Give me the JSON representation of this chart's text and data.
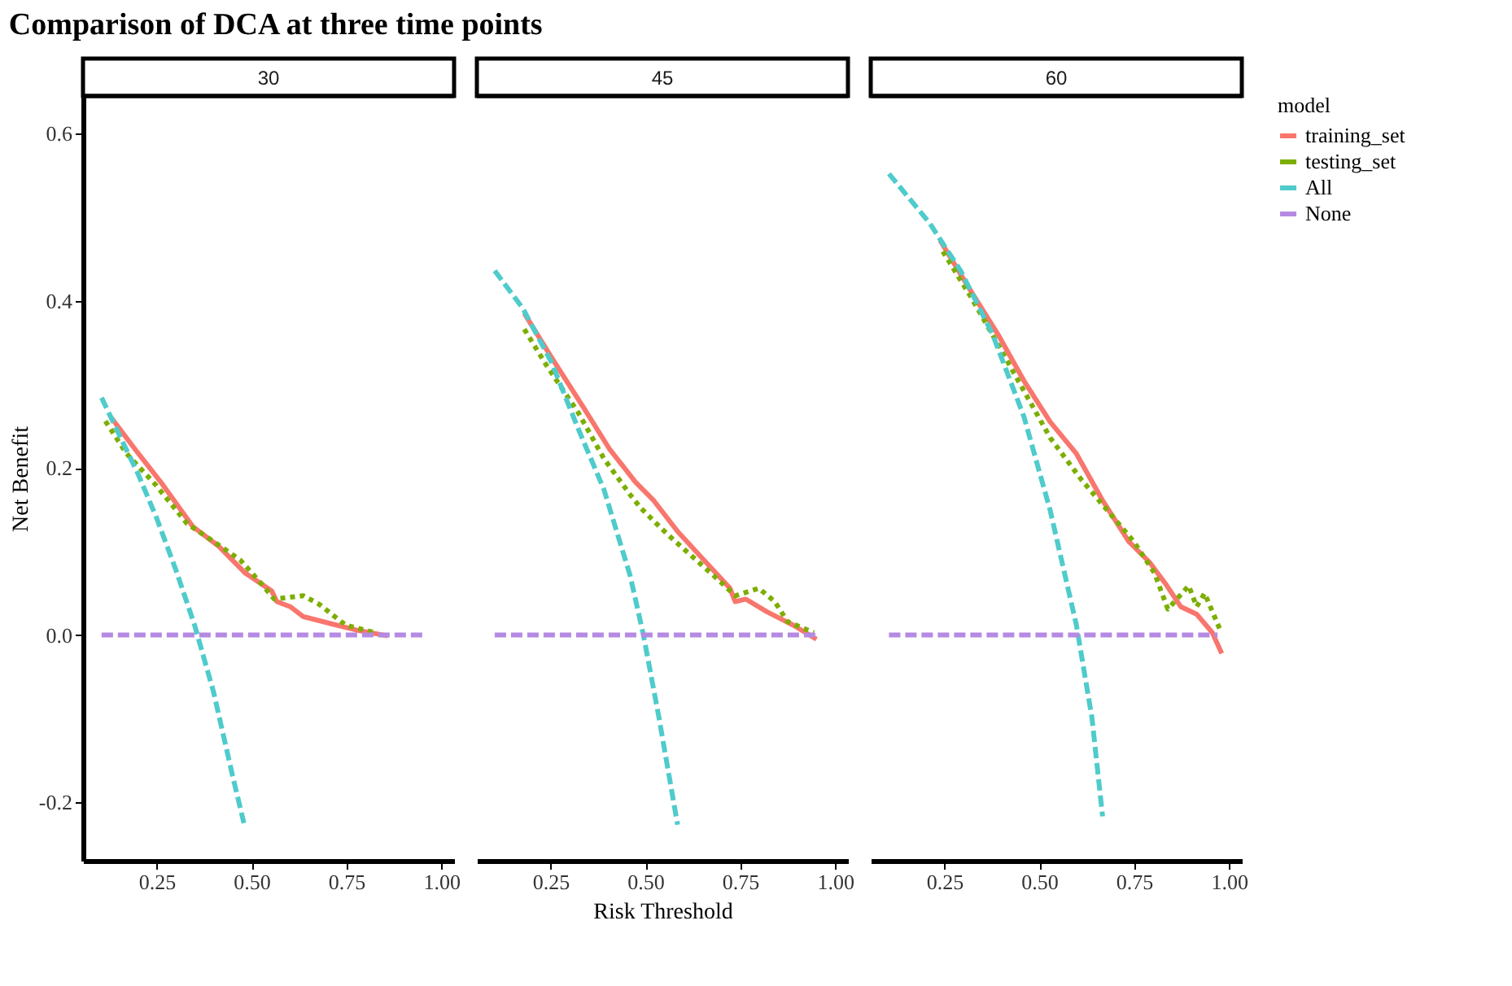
{
  "chart_data": [
    {
      "type": "line",
      "title": "Comparison of DCA at three time points",
      "subtitle": "30",
      "ylabel": "Net Benefit",
      "xlim": [
        0.056,
        1.034
      ],
      "ylim": [
        -0.27,
        0.645
      ],
      "xticks": [
        {
          "value": 0.25,
          "label": "0.25"
        },
        {
          "value": 0.5,
          "label": "0.50"
        },
        {
          "value": 0.75,
          "label": "0.75"
        },
        {
          "value": 1,
          "label": "1.00"
        }
      ],
      "yticks": [
        -0.2,
        {
          "value": 0,
          "label": "0.0"
        },
        0.2,
        0.4,
        0.6
      ],
      "grid": false,
      "legend": "right",
      "legend_title": "model",
      "series": [
        {
          "name": "training_set",
          "color": "#f8766d",
          "line_style": "solid",
          "x": [
            0.129,
            0.192,
            0.261,
            0.345,
            0.414,
            0.484,
            0.553,
            0.567,
            0.602,
            0.637,
            0.706,
            0.776,
            0.859
          ],
          "values": [
            0.261,
            0.223,
            0.183,
            0.13,
            0.106,
            0.074,
            0.053,
            0.04,
            0.034,
            0.022,
            0.014,
            0.006,
            -0.001
          ]
        },
        {
          "name": "testing_set",
          "color": "#7cae00",
          "line_style": "dotted",
          "x": [
            0.115,
            0.171,
            0.247,
            0.331,
            0.4,
            0.47,
            0.525,
            0.56,
            0.595,
            0.637,
            0.678,
            0.748,
            0.824
          ],
          "values": [
            0.256,
            0.217,
            0.18,
            0.133,
            0.112,
            0.09,
            0.062,
            0.043,
            0.045,
            0.047,
            0.037,
            0.012,
            0.003
          ]
        },
        {
          "name": "All",
          "color": "#4fcbcb",
          "line_style": "dashed",
          "x": [
            0.105,
            0.15,
            0.2,
            0.25,
            0.3,
            0.35,
            0.4,
            0.45,
            0.48
          ],
          "values": [
            0.284,
            0.241,
            0.194,
            0.14,
            0.079,
            0.012,
            -0.068,
            -0.168,
            -0.225
          ]
        },
        {
          "name": "None",
          "color": "#b58ae2",
          "line_style": "dashed",
          "x": [
            0.105,
            0.957
          ],
          "values": [
            0,
            0
          ]
        }
      ]
    },
    {
      "type": "line",
      "subtitle": "45",
      "xlabel": "Risk Threshold",
      "xlim": [
        0.056,
        1.034
      ],
      "ylim": [
        -0.27,
        0.645
      ],
      "xticks": [
        {
          "value": 0.25,
          "label": "0.25"
        },
        {
          "value": 0.5,
          "label": "0.50"
        },
        {
          "value": 0.75,
          "label": "0.75"
        },
        {
          "value": 1,
          "label": "1.00"
        }
      ],
      "yticks": [
        -0.2,
        0,
        0.2,
        0.4,
        0.6
      ],
      "tick_labels": "x",
      "grid": false,
      "legend": false,
      "series": [
        {
          "name": "training_set",
          "color": "#f8766d",
          "line_style": "solid",
          "x": [
            0.181,
            0.253,
            0.336,
            0.405,
            0.474,
            0.522,
            0.585,
            0.654,
            0.723,
            0.737,
            0.765,
            0.82,
            0.889,
            0.951
          ],
          "values": [
            0.385,
            0.332,
            0.273,
            0.223,
            0.183,
            0.161,
            0.124,
            0.09,
            0.056,
            0.04,
            0.043,
            0.028,
            0.012,
            -0.005
          ]
        },
        {
          "name": "testing_set",
          "color": "#7cae00",
          "line_style": "dotted",
          "x": [
            0.181,
            0.239,
            0.322,
            0.391,
            0.46,
            0.488,
            0.557,
            0.626,
            0.695,
            0.737,
            0.799,
            0.841,
            0.875,
            0.944
          ],
          "values": [
            0.366,
            0.323,
            0.267,
            0.211,
            0.168,
            0.152,
            0.121,
            0.093,
            0.065,
            0.047,
            0.056,
            0.04,
            0.016,
            0.003
          ]
        },
        {
          "name": "All",
          "color": "#4fcbcb",
          "line_style": "dashed",
          "x": [
            0.103,
            0.177,
            0.253,
            0.322,
            0.391,
            0.46,
            0.495,
            0.536,
            0.585
          ],
          "values": [
            0.436,
            0.391,
            0.326,
            0.248,
            0.174,
            0.071,
            0.0,
            -0.099,
            -0.227
          ]
        },
        {
          "name": "None",
          "color": "#b58ae2",
          "line_style": "dashed",
          "x": [
            0.103,
            0.95
          ],
          "values": [
            0,
            0
          ]
        }
      ]
    },
    {
      "type": "line",
      "subtitle": "60",
      "xlim": [
        0.056,
        1.034
      ],
      "ylim": [
        -0.27,
        0.645
      ],
      "xticks": [
        {
          "value": 0.25,
          "label": "0.25"
        },
        {
          "value": 0.5,
          "label": "0.50"
        },
        {
          "value": 0.75,
          "label": "0.75"
        },
        {
          "value": 1,
          "label": "1.00"
        }
      ],
      "yticks": [
        -0.2,
        0,
        0.2,
        0.4,
        0.6
      ],
      "tick_labels": "x",
      "grid": false,
      "legend": false,
      "series": [
        {
          "name": "training_set",
          "color": "#f8766d",
          "line_style": "solid",
          "x": [
            0.239,
            0.322,
            0.391,
            0.46,
            0.529,
            0.598,
            0.667,
            0.736,
            0.791,
            0.832,
            0.873,
            0.915,
            0.956,
            0.981
          ],
          "values": [
            0.472,
            0.41,
            0.36,
            0.304,
            0.255,
            0.217,
            0.161,
            0.112,
            0.087,
            0.062,
            0.034,
            0.025,
            0.003,
            -0.022
          ]
        },
        {
          "name": "testing_set",
          "color": "#7cae00",
          "line_style": "dotted",
          "x": [
            0.246,
            0.322,
            0.391,
            0.46,
            0.529,
            0.611,
            0.68,
            0.749,
            0.804,
            0.839,
            0.894,
            0.915,
            0.936,
            0.977
          ],
          "values": [
            0.459,
            0.403,
            0.348,
            0.292,
            0.236,
            0.186,
            0.149,
            0.112,
            0.074,
            0.031,
            0.059,
            0.034,
            0.05,
            0.006
          ]
        },
        {
          "name": "All",
          "color": "#4fcbcb",
          "line_style": "dashed",
          "x": [
            0.104,
            0.211,
            0.294,
            0.377,
            0.46,
            0.529,
            0.598,
            0.639,
            0.667
          ],
          "values": [
            0.552,
            0.493,
            0.435,
            0.36,
            0.261,
            0.149,
            0.012,
            -0.099,
            -0.217
          ]
        },
        {
          "name": "None",
          "color": "#b58ae2",
          "line_style": "dashed",
          "x": [
            0.104,
            0.97
          ],
          "values": [
            0,
            0
          ]
        }
      ]
    }
  ]
}
